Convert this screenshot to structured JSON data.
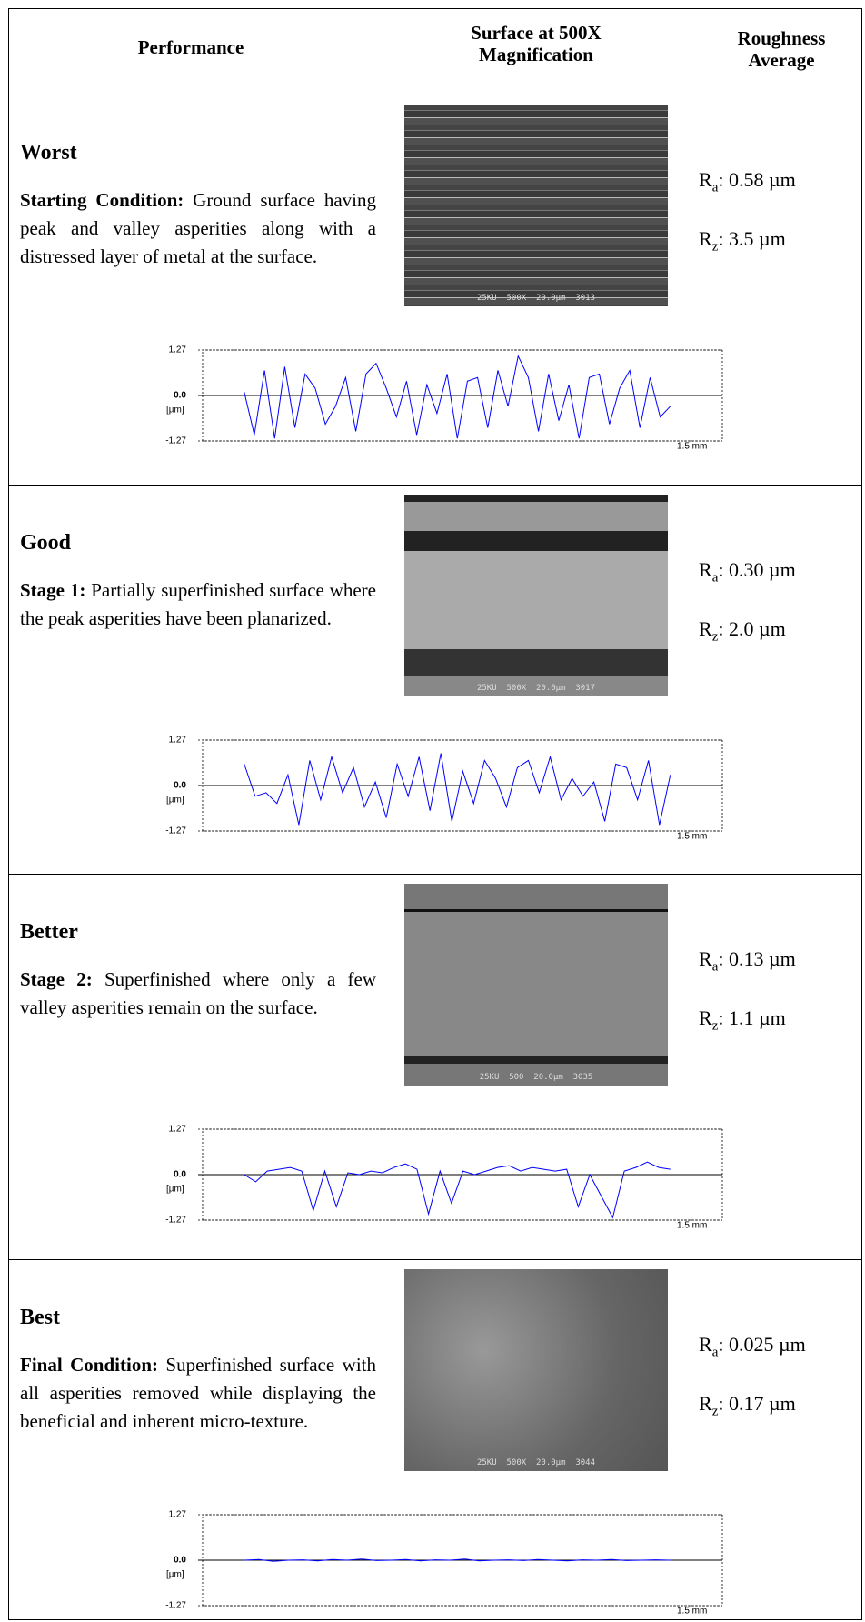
{
  "header": {
    "columns": [
      "Performance",
      "Surface at 500X Magnification",
      "Roughness Average"
    ]
  },
  "rows": [
    {
      "performance": "Worst",
      "lead": "Starting Condition:",
      "description": "Ground surface having peak and valley asperities along with a distressed layer of metal at the surface.",
      "micrograph_label": "25KU  500X  20.0µm  3013",
      "ra": {
        "symbol": "R",
        "subscript": "a",
        "value": ":  0.58 µm"
      },
      "rz": {
        "symbol": "R",
        "subscript": "z",
        "value": ":  3.5 µm"
      },
      "profile": {
        "type": "line",
        "color": "#0000ff",
        "ylim": [
          -1.27,
          1.27
        ],
        "yticks": [
          1.27,
          {
            "value": 0,
            "label": "0.0"
          },
          -1.27
        ],
        "y_label": "[µm]",
        "x_label": "1.5 mm",
        "values": [
          0.1,
          -1.1,
          0.7,
          -1.2,
          0.8,
          -0.9,
          0.6,
          0.2,
          -0.8,
          -0.3,
          0.5,
          -1.0,
          0.6,
          0.9,
          0.2,
          -0.6,
          0.4,
          -1.1,
          0.3,
          -0.5,
          0.6,
          -1.2,
          0.4,
          0.5,
          -0.9,
          0.7,
          -0.3,
          1.1,
          0.5,
          -1.0,
          0.6,
          -0.7,
          0.3,
          -1.2,
          0.5,
          0.6,
          -0.8,
          0.2,
          0.7,
          -0.9,
          0.5,
          -0.6,
          -0.3
        ]
      }
    },
    {
      "performance": "Good",
      "lead": "Stage 1:",
      "description": "Partially superfinished surface where the peak asperities have been planarized.",
      "micrograph_label": "25KU  500X  20.0µm  3017",
      "ra": {
        "symbol": "R",
        "subscript": "a",
        "value": ":  0.30 µm"
      },
      "rz": {
        "symbol": "R",
        "subscript": "z",
        "value": ":  2.0 µm"
      },
      "profile": {
        "type": "line",
        "color": "#0000ff",
        "ylim": [
          -1.27,
          1.27
        ],
        "yticks": [
          1.27,
          {
            "value": 0,
            "label": "0.0"
          },
          -1.27
        ],
        "y_label": "[µm]",
        "x_label": "1.5 mm",
        "values": [
          0.6,
          -0.3,
          -0.2,
          -0.5,
          0.3,
          -1.1,
          0.7,
          -0.4,
          0.8,
          -0.2,
          0.5,
          -0.6,
          0.1,
          -0.9,
          0.6,
          -0.3,
          0.8,
          -0.7,
          0.9,
          -1.0,
          0.4,
          -0.5,
          0.7,
          0.2,
          -0.6,
          0.5,
          0.7,
          -0.2,
          0.8,
          -0.4,
          0.2,
          -0.3,
          0.1,
          -1.0,
          0.6,
          0.5,
          -0.4,
          0.7,
          -1.1,
          0.3
        ]
      }
    },
    {
      "performance": "Better",
      "lead": "Stage 2:",
      "description": "Superfinished where only a few valley asperities remain on the surface.",
      "micrograph_label": "25KU  500  20.0µm  3035",
      "ra": {
        "symbol": "R",
        "subscript": "a",
        "value": ":  0.13 µm"
      },
      "rz": {
        "symbol": "R",
        "subscript": "z",
        "value": ":  1.1 µm"
      },
      "profile": {
        "type": "line",
        "color": "#0000ff",
        "ylim": [
          -1.27,
          1.27
        ],
        "yticks": [
          1.27,
          {
            "value": 0,
            "label": "0.0"
          },
          -1.27
        ],
        "y_label": "[µm]",
        "x_label": "1.5 mm",
        "values": [
          0.0,
          -0.2,
          0.1,
          0.15,
          0.2,
          0.1,
          -1.0,
          0.1,
          -0.9,
          0.05,
          0.0,
          0.1,
          0.05,
          0.2,
          0.3,
          0.15,
          -1.1,
          0.1,
          -0.8,
          0.1,
          0.0,
          0.1,
          0.2,
          0.25,
          0.1,
          0.2,
          0.15,
          0.1,
          0.15,
          -0.9,
          0.0,
          -0.6,
          -1.2,
          0.1,
          0.2,
          0.35,
          0.2,
          0.15
        ]
      }
    },
    {
      "performance": "Best",
      "lead": "Final Condition:",
      "description": "Superfinished surface with all asperities removed while displaying the beneficial and inherent micro-texture.",
      "micrograph_label": "25KU  500X  20.0µm  3044",
      "ra": {
        "symbol": "R",
        "subscript": "a",
        "value": ":  0.025 µm"
      },
      "rz": {
        "symbol": "R",
        "subscript": "z",
        "value": ":  0.17 µm"
      },
      "profile": {
        "type": "line",
        "color": "#0000ff",
        "ylim": [
          -1.27,
          1.27
        ],
        "yticks": [
          1.27,
          {
            "value": 0,
            "label": "0.0"
          },
          -1.27
        ],
        "y_label": "[µm]",
        "x_label": "1.5 mm",
        "values": [
          0.0,
          0.02,
          -0.03,
          0.0,
          0.01,
          -0.02,
          0.02,
          0.0,
          0.03,
          -0.01,
          0.0,
          0.02,
          -0.02,
          0.01,
          0.0,
          0.03,
          -0.02,
          0.0,
          0.01,
          -0.01,
          0.02,
          0.0,
          -0.02,
          0.01,
          0.0,
          0.02,
          -0.01,
          0.0,
          0.01,
          0.0
        ]
      }
    }
  ]
}
